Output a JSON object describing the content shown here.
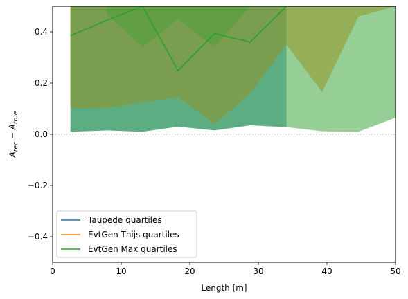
{
  "chart_data": {
    "type": "area",
    "xlabel": "Length [m]",
    "ylabel": "A_rec − A_true",
    "xlim": [
      0,
      50
    ],
    "ylim": [
      -0.5,
      0.5
    ],
    "xticks": [
      0,
      10,
      20,
      30,
      40,
      50
    ],
    "xtick_labels": [
      "0",
      "10",
      "20",
      "30",
      "40",
      "50"
    ],
    "yticks": [
      -0.4,
      -0.2,
      0.0,
      0.2,
      0.4
    ],
    "ytick_labels": [
      "−0.4",
      "−0.2",
      "0.0",
      "0.2",
      "0.4"
    ],
    "reference_line_y": 0.0,
    "legend_position": "lower-left",
    "legend": [
      "Taupede quartiles",
      "EvtGen Thijs quartiles",
      "EvtGen Max quartiles"
    ],
    "series": [
      {
        "name": "Taupede quartiles",
        "color": "#1f77b4",
        "band_lower": [
          0.01,
          0.015,
          0.01,
          0.03,
          0.015,
          0.035,
          0.028
        ],
        "x": [
          2.6,
          7.9,
          13.1,
          18.3,
          23.6,
          28.8,
          34.1
        ],
        "band_upper": [
          0.5,
          0.5,
          0.5,
          0.5,
          0.5,
          0.5,
          0.5
        ]
      },
      {
        "name": "EvtGen Thijs quartiles",
        "color": "#ff7f0e",
        "x": [
          2.6,
          7.9,
          13.1,
          18.3,
          23.6,
          28.8,
          34.1,
          39.3,
          44.6,
          50
        ],
        "band_lower": [
          0.1,
          0.102,
          0.125,
          0.145,
          0.04,
          0.16,
          0.35,
          0.165,
          0.46,
          0.5
        ],
        "band_upper": [
          0.5,
          0.5,
          0.5,
          0.5,
          0.5,
          0.5,
          0.5,
          0.5,
          0.5,
          0.5
        ]
      },
      {
        "name": "EvtGen Max quartiles",
        "color": "#2ca02c",
        "x": [
          2.6,
          7.9,
          13.1,
          18.3,
          23.6,
          28.8,
          34.1,
          39.3,
          44.6,
          50
        ],
        "median": [
          0.385,
          0.445,
          0.5,
          0.248,
          0.393,
          0.36,
          0.5,
          0.5,
          0.5,
          0.5
        ],
        "band_lower": [
          0.01,
          0.015,
          0.01,
          0.03,
          0.015,
          0.035,
          0.028,
          0.012,
          0.01,
          0.065
        ],
        "band_upper": [
          0.5,
          0.5,
          0.5,
          0.5,
          0.5,
          0.5,
          0.5,
          0.5,
          0.5,
          0.5
        ]
      }
    ],
    "dark_overlap": {
      "x": [
        7.9,
        13.1,
        18.3,
        23.6,
        28.8
      ],
      "lower": [
        0.47,
        0.34,
        0.45,
        0.34,
        0.5
      ]
    }
  }
}
